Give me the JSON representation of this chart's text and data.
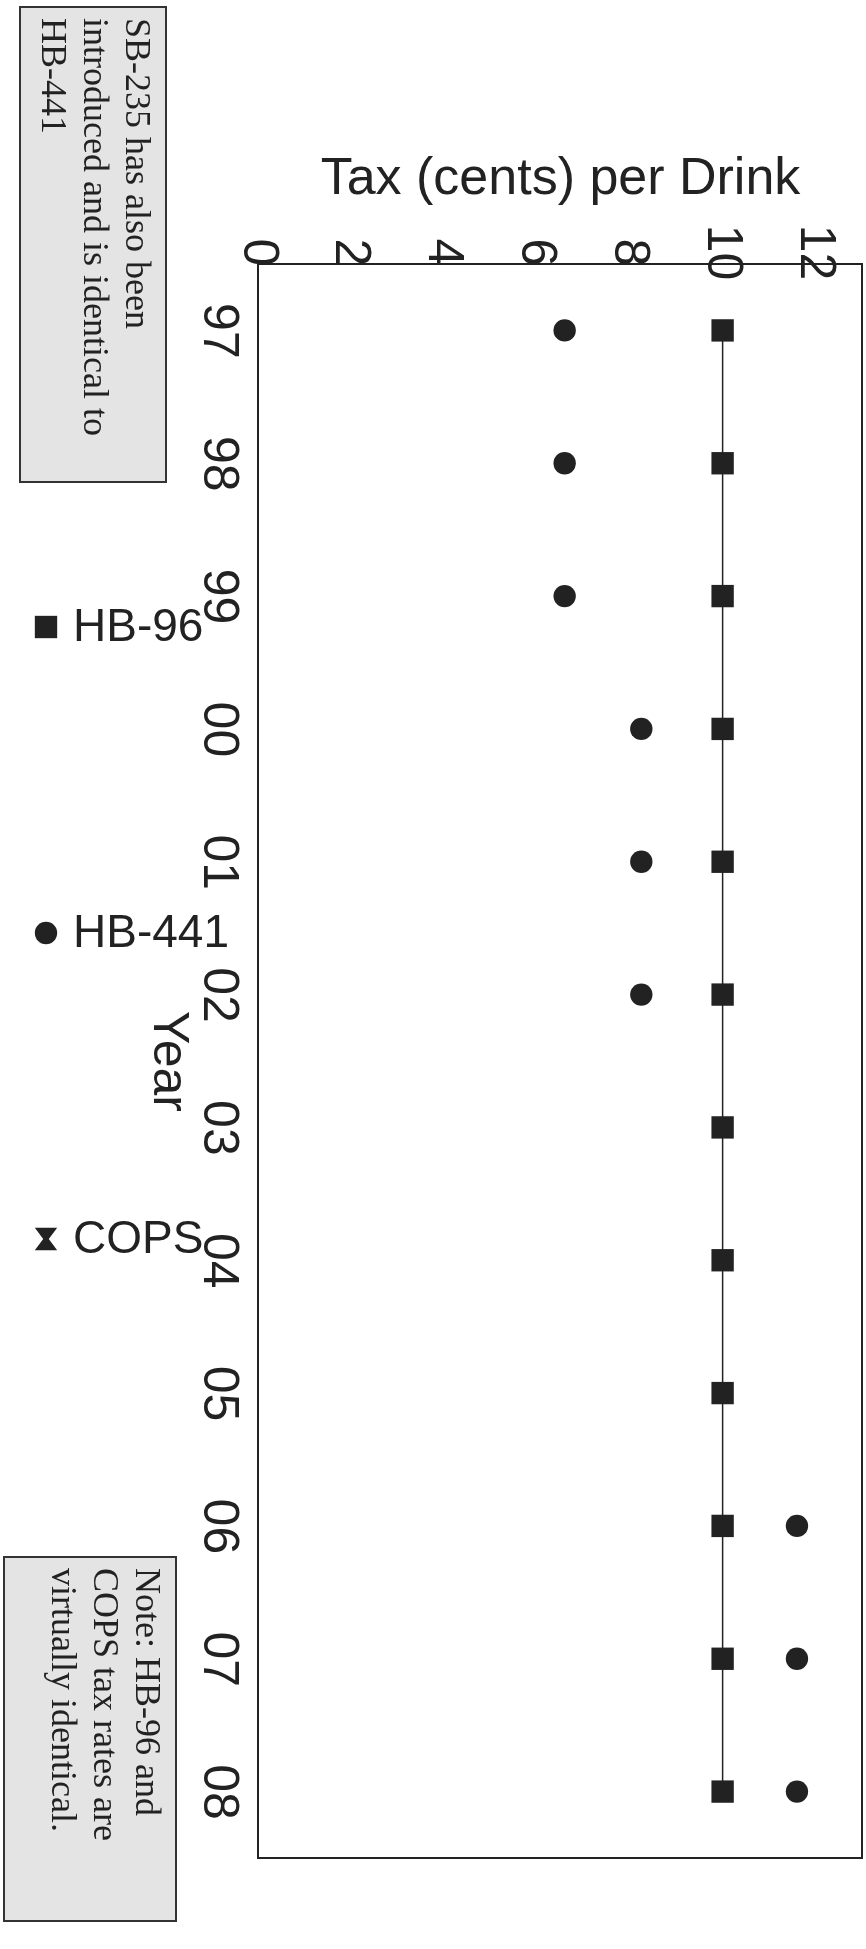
{
  "chart_data": {
    "type": "scatter",
    "orientation": "horizontal",
    "xlabel": "Tax (cents) per Drink",
    "ylabel": "Year",
    "categories": [
      "97",
      "98",
      "99",
      "00",
      "01",
      "02",
      "03",
      "04",
      "05",
      "06",
      "07",
      "08"
    ],
    "series": [
      {
        "name": "HB-96",
        "type": "line",
        "marker": "square",
        "line_style": "solid",
        "color": "#222222",
        "values": [
          10,
          10,
          10,
          10,
          10,
          10,
          10,
          10,
          10,
          10,
          10,
          10
        ]
      },
      {
        "name": "HB-441",
        "marker": "circle",
        "color": "#222222",
        "values": [
          6.6,
          6.6,
          6.6,
          8.25,
          8.25,
          8.25,
          null,
          null,
          null,
          11.6,
          11.6,
          11.6
        ]
      },
      {
        "name": "COPS",
        "marker": "cross",
        "color": "#222222",
        "values": [
          null,
          null,
          null,
          null,
          null,
          null,
          null,
          null,
          null,
          null,
          null,
          null
        ]
      }
    ],
    "xlim": [
      0,
      13
    ],
    "xticks": [
      0,
      2,
      4,
      6,
      8,
      10,
      12
    ],
    "legend": "left",
    "annotations": [
      "SB-235 has also been introduced and is identical to HB-441",
      "Note: HB-96 and COPS tax rates are virtually identical."
    ]
  }
}
